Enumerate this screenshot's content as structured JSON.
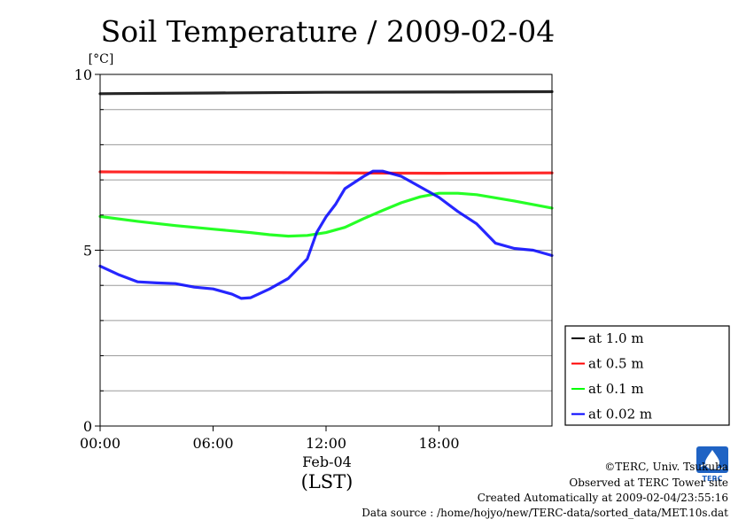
{
  "chart_data": {
    "type": "line",
    "title": "Soil Temperature / 2009-02-04",
    "ylabel": "[°C]",
    "xlabel": "(LST)",
    "date_label": "Feb-04",
    "ylim": [
      0,
      10
    ],
    "xlim": [
      0,
      24
    ],
    "y_ticks": [
      {
        "value": 0,
        "label": "0"
      },
      {
        "value": 5,
        "label": "5"
      },
      {
        "value": 10,
        "label": "10"
      }
    ],
    "x_ticks": [
      {
        "value": 0,
        "label": "00:00"
      },
      {
        "value": 6,
        "label": "06:00"
      },
      {
        "value": 12,
        "label": "12:00"
      },
      {
        "value": 18,
        "label": "18:00"
      }
    ],
    "grid": true,
    "legend_position": "right-bottom",
    "series": [
      {
        "name": "at 1.0 m",
        "color": "#000000",
        "x": [
          0,
          6,
          12,
          18,
          24
        ],
        "y": [
          9.45,
          9.47,
          9.49,
          9.5,
          9.51
        ]
      },
      {
        "name": "at 0.5 m",
        "color": "#ff0000",
        "x": [
          0,
          6,
          12,
          18,
          24
        ],
        "y": [
          7.23,
          7.22,
          7.2,
          7.19,
          7.2
        ]
      },
      {
        "name": "at 0.1 m",
        "color": "#00ff00",
        "x": [
          0,
          2,
          4,
          6,
          8,
          9,
          10,
          11,
          12,
          13,
          14,
          15,
          16,
          17,
          18,
          19,
          20,
          22,
          24
        ],
        "y": [
          5.96,
          5.82,
          5.7,
          5.6,
          5.5,
          5.44,
          5.4,
          5.42,
          5.5,
          5.65,
          5.9,
          6.13,
          6.35,
          6.52,
          6.62,
          6.62,
          6.58,
          6.4,
          6.2
        ]
      },
      {
        "name": "at 0.02 m",
        "color": "#0000ff",
        "x": [
          0,
          1,
          2,
          3,
          4,
          5,
          6,
          7,
          7.5,
          8,
          9,
          10,
          11,
          11.5,
          12,
          12.5,
          13,
          14,
          14.5,
          15,
          16,
          17,
          18,
          19,
          20,
          21,
          22,
          23,
          24
        ],
        "y": [
          4.55,
          4.3,
          4.1,
          4.07,
          4.05,
          3.95,
          3.9,
          3.75,
          3.63,
          3.65,
          3.9,
          4.2,
          4.75,
          5.5,
          5.95,
          6.3,
          6.75,
          7.1,
          7.25,
          7.25,
          7.1,
          6.8,
          6.5,
          6.1,
          5.75,
          5.2,
          5.05,
          5.0,
          4.85
        ]
      }
    ]
  },
  "footer": {
    "copyright": "©TERC, Univ. Tsukuba",
    "observed": "Observed at TERC Tower site",
    "created": "Created Automatically at 2009-02-04/23:55:16",
    "source": "Data source : /home/hojyo/new/TERC-data/sorted_data/MET.10s.dat"
  },
  "logo": {
    "text": "TERC",
    "color": "#1f63c4"
  }
}
